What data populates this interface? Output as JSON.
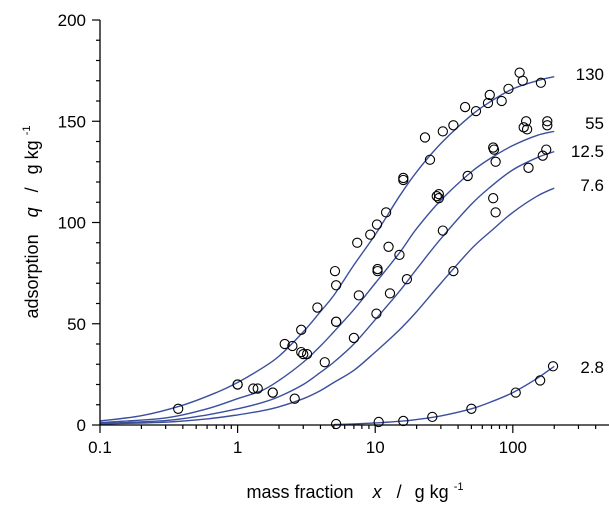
{
  "chart_data": {
    "type": "scatter",
    "title": "",
    "xlabel": {
      "text": "mass fraction",
      "symbol": "x",
      "slash": "/",
      "unit": "g kg",
      "sup": "-1"
    },
    "ylabel": {
      "text": "adsorption",
      "symbol": "q",
      "slash": "/",
      "unit": "g kg",
      "sup": "-1"
    },
    "xscale": "log",
    "xlim": [
      0.1,
      500
    ],
    "ylim": [
      0,
      200
    ],
    "xticks": [
      {
        "value": 0.1,
        "label": "0.1"
      },
      {
        "value": 1,
        "label": "1"
      },
      {
        "value": 10,
        "label": "10"
      },
      {
        "value": 100,
        "label": "100"
      }
    ],
    "yticks": [
      {
        "value": 0,
        "label": "0"
      },
      {
        "value": 50,
        "label": "50"
      },
      {
        "value": 100,
        "label": "100"
      },
      {
        "value": 150,
        "label": "150"
      },
      {
        "value": 200,
        "label": "200"
      }
    ],
    "grid": false,
    "line_color": "#3a4f9e",
    "marker_color": "#000000",
    "series": [
      {
        "label": "130",
        "label_pos": [
          310,
          172
        ],
        "points": [
          [
            0.37,
            8
          ],
          [
            1.0,
            20
          ],
          [
            1.4,
            18
          ],
          [
            1.8,
            16
          ],
          [
            2.2,
            40
          ],
          [
            2.5,
            39
          ],
          [
            2.9,
            47
          ],
          [
            3.8,
            58
          ],
          [
            5.1,
            76
          ],
          [
            5.2,
            69
          ],
          [
            7.4,
            90
          ],
          [
            9.2,
            94
          ],
          [
            10.3,
            99
          ],
          [
            12.0,
            105
          ],
          [
            16.0,
            121
          ],
          [
            23,
            142
          ],
          [
            25,
            131
          ],
          [
            31,
            145
          ],
          [
            37,
            148
          ],
          [
            45,
            157
          ],
          [
            54,
            155
          ],
          [
            66,
            159
          ],
          [
            68,
            163
          ],
          [
            83,
            160
          ],
          [
            93,
            166
          ],
          [
            112,
            174
          ],
          [
            118,
            170
          ],
          [
            160,
            169
          ]
        ],
        "curve": [
          [
            0.1,
            2.0
          ],
          [
            0.2,
            4.6
          ],
          [
            0.4,
            9.8
          ],
          [
            0.7,
            16
          ],
          [
            1,
            21
          ],
          [
            1.5,
            28
          ],
          [
            2,
            34
          ],
          [
            3,
            46
          ],
          [
            4,
            56
          ],
          [
            5,
            64
          ],
          [
            7,
            79
          ],
          [
            10,
            94
          ],
          [
            15,
            113
          ],
          [
            20,
            125
          ],
          [
            30,
            139
          ],
          [
            50,
            153
          ],
          [
            70,
            160
          ],
          [
            100,
            166
          ],
          [
            150,
            170
          ],
          [
            200,
            172
          ]
        ]
      },
      {
        "label": "55",
        "label_pos": [
          310,
          147
        ],
        "points": [
          [
            1.0,
            20
          ],
          [
            2.9,
            36
          ],
          [
            3.2,
            35
          ],
          [
            5.2,
            51
          ],
          [
            7.6,
            64
          ],
          [
            10.4,
            77
          ],
          [
            12.5,
            88
          ],
          [
            16.0,
            122
          ],
          [
            29,
            114
          ],
          [
            29,
            112
          ],
          [
            73,
            136
          ],
          [
            75,
            130
          ],
          [
            125,
            150
          ],
          [
            127,
            146
          ],
          [
            178,
            150
          ],
          [
            178,
            148
          ]
        ],
        "curve": [
          [
            0.1,
            1.2
          ],
          [
            0.3,
            3.5
          ],
          [
            0.6,
            8
          ],
          [
            1,
            13
          ],
          [
            1.5,
            17
          ],
          [
            2,
            22
          ],
          [
            3,
            31
          ],
          [
            4,
            39
          ],
          [
            5,
            46
          ],
          [
            7,
            57
          ],
          [
            10,
            70
          ],
          [
            15,
            85
          ],
          [
            20,
            97
          ],
          [
            30,
            111
          ],
          [
            50,
            125
          ],
          [
            70,
            132
          ],
          [
            100,
            138
          ],
          [
            150,
            143
          ],
          [
            200,
            145
          ]
        ]
      },
      {
        "label": "12.5",
        "label_pos": [
          310,
          134
        ],
        "points": [
          [
            1.3,
            18
          ],
          [
            3.0,
            35
          ],
          [
            5.2,
            51
          ],
          [
            10.4,
            76
          ],
          [
            15.0,
            84
          ],
          [
            28,
            113
          ],
          [
            47,
            123
          ],
          [
            72,
            137
          ],
          [
            120,
            147
          ],
          [
            175,
            136
          ]
        ],
        "curve": [
          [
            0.1,
            0.8
          ],
          [
            0.3,
            2.2
          ],
          [
            0.6,
            5
          ],
          [
            1,
            8
          ],
          [
            1.5,
            11
          ],
          [
            2,
            14
          ],
          [
            3,
            20
          ],
          [
            4,
            26
          ],
          [
            5,
            31
          ],
          [
            7,
            40
          ],
          [
            10,
            52
          ],
          [
            15,
            66
          ],
          [
            20,
            77
          ],
          [
            30,
            92
          ],
          [
            50,
            109
          ],
          [
            70,
            118
          ],
          [
            100,
            126
          ],
          [
            150,
            132
          ],
          [
            200,
            135
          ]
        ]
      },
      {
        "label": "7.6",
        "label_pos": [
          310,
          109
        ],
        "points": [
          [
            1.8,
            16
          ],
          [
            2.6,
            13
          ],
          [
            4.3,
            31
          ],
          [
            7.0,
            43
          ],
          [
            10.2,
            55
          ],
          [
            12.8,
            65
          ],
          [
            17,
            72
          ],
          [
            31,
            96
          ],
          [
            37,
            76
          ],
          [
            72,
            112
          ],
          [
            75,
            105
          ],
          [
            130,
            127
          ],
          [
            165,
            133
          ]
        ],
        "curve": [
          [
            0.1,
            0.5
          ],
          [
            0.3,
            1.4
          ],
          [
            0.6,
            3
          ],
          [
            1,
            5
          ],
          [
            1.5,
            7
          ],
          [
            2,
            9
          ],
          [
            3,
            13
          ],
          [
            4,
            17
          ],
          [
            5,
            21
          ],
          [
            7,
            27
          ],
          [
            10,
            36
          ],
          [
            15,
            47
          ],
          [
            20,
            56
          ],
          [
            30,
            70
          ],
          [
            50,
            87
          ],
          [
            70,
            96
          ],
          [
            100,
            105
          ],
          [
            150,
            113
          ],
          [
            200,
            117
          ]
        ]
      },
      {
        "label": "2.8",
        "label_pos": [
          310,
          35
        ],
        "points": [
          [
            5.2,
            0.5
          ],
          [
            10.6,
            1.5
          ],
          [
            16.0,
            2
          ],
          [
            26,
            4
          ],
          [
            50,
            8
          ],
          [
            105,
            16
          ],
          [
            158,
            22
          ],
          [
            196,
            29
          ]
        ],
        "curve": [
          [
            5,
            0.2
          ],
          [
            7,
            0.5
          ],
          [
            10,
            1
          ],
          [
            15,
            1.8
          ],
          [
            20,
            2.7
          ],
          [
            30,
            4.5
          ],
          [
            50,
            8
          ],
          [
            70,
            11.5
          ],
          [
            100,
            16
          ],
          [
            150,
            23
          ],
          [
            200,
            29
          ]
        ]
      }
    ]
  }
}
